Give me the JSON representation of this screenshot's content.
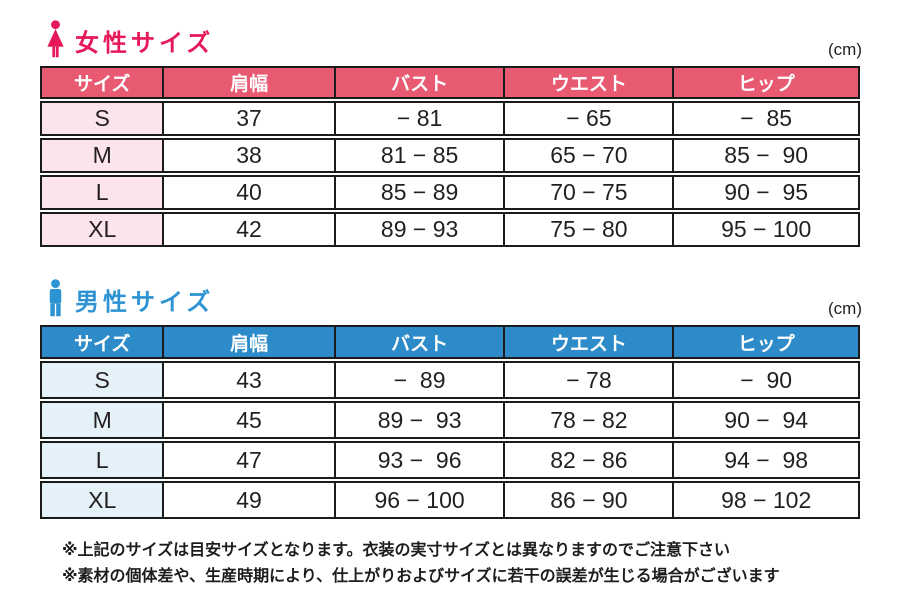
{
  "tables": [
    {
      "title": "女性サイズ",
      "unit": "(cm)",
      "icon": "female-icon",
      "colors": {
        "accent": "#e5195a",
        "header_bg": "#e85a72",
        "row_label_bg": "#fbe4ea"
      },
      "columns": [
        "サイズ",
        "肩幅",
        "バスト",
        "ウエスト",
        "ヒップ"
      ],
      "rows": [
        [
          "S",
          "37",
          "− 81",
          "− 65",
          "−  85"
        ],
        [
          "M",
          "38",
          "81 − 85",
          "65 − 70",
          "85 −  90"
        ],
        [
          "L",
          "40",
          "85 − 89",
          "70 − 75",
          "90 −  95"
        ],
        [
          "XL",
          "42",
          "89 − 93",
          "75 − 80",
          "95 − 100"
        ]
      ]
    },
    {
      "title": "男性サイズ",
      "unit": "(cm)",
      "icon": "male-icon",
      "colors": {
        "accent": "#2d93d2",
        "header_bg": "#2d8bc9",
        "row_label_bg": "#e4f1f9"
      },
      "columns": [
        "サイズ",
        "肩幅",
        "バスト",
        "ウエスト",
        "ヒップ"
      ],
      "rows": [
        [
          "S",
          "43",
          "−  89",
          "− 78",
          "−  90"
        ],
        [
          "M",
          "45",
          "89 −  93",
          "78 − 82",
          "90 −  94"
        ],
        [
          "L",
          "47",
          "93 −  96",
          "82 − 86",
          "94 −  98"
        ],
        [
          "XL",
          "49",
          "96 − 100",
          "86 − 90",
          "98 − 102"
        ]
      ]
    }
  ],
  "notes": [
    "※上記のサイズは目安サイズとなります。衣装の実寸サイズとは異なりますのでご注意下さい",
    "※素材の個体差や、生産時期により、仕上がりおよびサイズに若干の誤差が生じる場合がございます"
  ],
  "chart_data": [
    {
      "type": "table",
      "title": "女性サイズ",
      "unit": "cm",
      "columns": [
        "サイズ",
        "肩幅",
        "バスト",
        "ウエスト",
        "ヒップ"
      ],
      "rows": [
        {
          "size": "S",
          "shoulder": 37,
          "bust": [
            null,
            81
          ],
          "waist": [
            null,
            65
          ],
          "hip": [
            null,
            85
          ]
        },
        {
          "size": "M",
          "shoulder": 38,
          "bust": [
            81,
            85
          ],
          "waist": [
            65,
            70
          ],
          "hip": [
            85,
            90
          ]
        },
        {
          "size": "L",
          "shoulder": 40,
          "bust": [
            85,
            89
          ],
          "waist": [
            70,
            75
          ],
          "hip": [
            90,
            95
          ]
        },
        {
          "size": "XL",
          "shoulder": 42,
          "bust": [
            89,
            93
          ],
          "waist": [
            75,
            80
          ],
          "hip": [
            95,
            100
          ]
        }
      ]
    },
    {
      "type": "table",
      "title": "男性サイズ",
      "unit": "cm",
      "columns": [
        "サイズ",
        "肩幅",
        "バスト",
        "ウエスト",
        "ヒップ"
      ],
      "rows": [
        {
          "size": "S",
          "shoulder": 43,
          "bust": [
            null,
            89
          ],
          "waist": [
            null,
            78
          ],
          "hip": [
            null,
            90
          ]
        },
        {
          "size": "M",
          "shoulder": 45,
          "bust": [
            89,
            93
          ],
          "waist": [
            78,
            82
          ],
          "hip": [
            90,
            94
          ]
        },
        {
          "size": "L",
          "shoulder": 47,
          "bust": [
            93,
            96
          ],
          "waist": [
            82,
            86
          ],
          "hip": [
            94,
            98
          ]
        },
        {
          "size": "XL",
          "shoulder": 49,
          "bust": [
            96,
            100
          ],
          "waist": [
            86,
            90
          ],
          "hip": [
            98,
            102
          ]
        }
      ]
    }
  ]
}
